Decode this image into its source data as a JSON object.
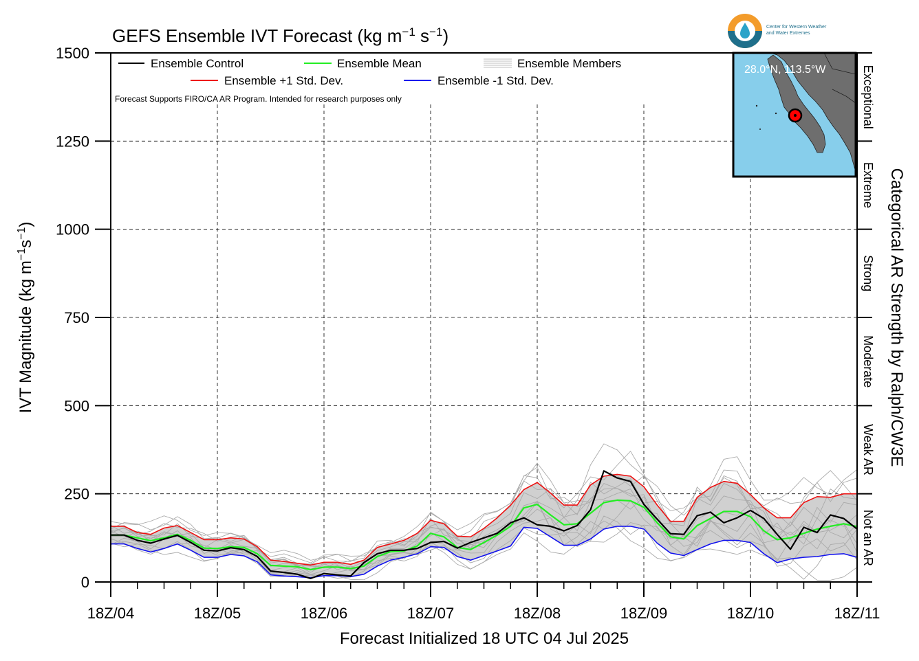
{
  "chart_data": {
    "type": "line",
    "title": "GEFS Ensemble IVT Forecast (kg m⁻¹ s⁻¹)",
    "title_main": "GEFS Ensemble IVT Forecast (kg m",
    "title_mid": " s",
    "title_end": ")",
    "title_sup": "−1",
    "ylabel": "IVT Magnitude (kg m⁻¹s⁻¹)",
    "ylabel_main": "IVT Magnitude (kg m",
    "ylabel_mid": "s",
    "ylabel_end": ")",
    "ylabel_sup": "−1",
    "xlabel": "Forecast Initialized 18 UTC 04 Jul 2025",
    "right_label": "Categorical AR Strength by Ralph/CW3E",
    "ylim": [
      0,
      1500
    ],
    "xlim": [
      0,
      168
    ],
    "y_ticks": [
      0,
      250,
      500,
      750,
      1000,
      1250,
      1500
    ],
    "x_tick_labels": [
      "18Z/04",
      "18Z/05",
      "18Z/06",
      "18Z/07",
      "18Z/08",
      "18Z/09",
      "18Z/10",
      "18Z/11"
    ],
    "grid": "dashed",
    "ar_categories": [
      {
        "label": "Not an AR",
        "min": 0,
        "max": 250
      },
      {
        "label": "Weak AR",
        "min": 250,
        "max": 500
      },
      {
        "label": "Moderate",
        "min": 500,
        "max": 750
      },
      {
        "label": "Strong",
        "min": 750,
        "max": 1000
      },
      {
        "label": "Extreme",
        "min": 1000,
        "max": 1250
      },
      {
        "label": "Exceptional",
        "min": 1250,
        "max": 1500
      }
    ],
    "legend": {
      "control": "Ensemble Control",
      "mean": "Ensemble Mean",
      "members": "Ensemble Members",
      "plus": "Ensemble +1 Std. Dev.",
      "minus": "Ensemble -1 Std. Dev.",
      "note": "Forecast Supports FIRO/CA AR Program. Intended for research purposes only"
    },
    "location": "28.0°N, 113.5°W",
    "logo_text": [
      "Center for Western Weather",
      "and Water Extremes"
    ],
    "colors": {
      "control": "#000000",
      "mean": "#22ee22",
      "plus": "#ee1111",
      "minus": "#1111ee",
      "members": "#aaaaaa",
      "band": "#d0d0d0",
      "ocean": "#87ceeb",
      "land": "#6e6e6e"
    },
    "x_hours": [
      0,
      3,
      6,
      9,
      12,
      15,
      18,
      21,
      24,
      27,
      30,
      33,
      36,
      39,
      42,
      45,
      48,
      51,
      54,
      57,
      60,
      63,
      66,
      69,
      72,
      75,
      78,
      81,
      84,
      87,
      90,
      93,
      96,
      99,
      102,
      105,
      108,
      111,
      114,
      117,
      120,
      123,
      126,
      129,
      132,
      135,
      138,
      141,
      144,
      147,
      150,
      153,
      156,
      159,
      162,
      165,
      168
    ],
    "series": [
      {
        "name": "Ensemble Control",
        "values": [
          133,
          133,
          118,
          110,
          122,
          132,
          112,
          90,
          88,
          97,
          92,
          72,
          31,
          27,
          22,
          10,
          24,
          20,
          17,
          55,
          80,
          90,
          90,
          95,
          112,
          115,
          96,
          112,
          125,
          138,
          168,
          182,
          162,
          158,
          145,
          160,
          205,
          315,
          295,
          285,
          220,
          178,
          137,
          135,
          188,
          198,
          168,
          182,
          203,
          180,
          135,
          93,
          155,
          140,
          190,
          180,
          150
        ]
      },
      {
        "name": "Ensemble Mean",
        "values": [
          133,
          133,
          125,
          117,
          125,
          135,
          118,
          96,
          95,
          100,
          98,
          80,
          47,
          45,
          43,
          35,
          42,
          42,
          38,
          45,
          72,
          86,
          88,
          102,
          138,
          128,
          98,
          92,
          112,
          133,
          158,
          210,
          220,
          190,
          162,
          165,
          195,
          225,
          232,
          230,
          212,
          168,
          128,
          122,
          160,
          180,
          200,
          200,
          185,
          145,
          120,
          125,
          138,
          150,
          158,
          165,
          157
        ]
      },
      {
        "name": "Ensemble +1 Std. Dev.",
        "values": [
          158,
          158,
          140,
          135,
          153,
          160,
          140,
          120,
          120,
          125,
          122,
          100,
          62,
          58,
          53,
          48,
          56,
          56,
          50,
          62,
          98,
          108,
          118,
          138,
          175,
          165,
          130,
          128,
          152,
          182,
          218,
          262,
          282,
          252,
          218,
          218,
          275,
          300,
          305,
          300,
          270,
          218,
          172,
          172,
          240,
          268,
          285,
          280,
          248,
          210,
          182,
          182,
          225,
          242,
          240,
          250,
          250
        ]
      },
      {
        "name": "Ensemble -1 Std. Dev.",
        "values": [
          108,
          108,
          95,
          85,
          95,
          108,
          90,
          70,
          70,
          78,
          74,
          57,
          20,
          17,
          15,
          12,
          18,
          18,
          15,
          22,
          45,
          62,
          70,
          80,
          100,
          98,
          72,
          62,
          75,
          88,
          102,
          155,
          152,
          128,
          104,
          104,
          122,
          150,
          158,
          158,
          150,
          110,
          82,
          75,
          92,
          108,
          118,
          118,
          112,
          80,
          55,
          65,
          70,
          72,
          78,
          80,
          70
        ]
      }
    ]
  }
}
